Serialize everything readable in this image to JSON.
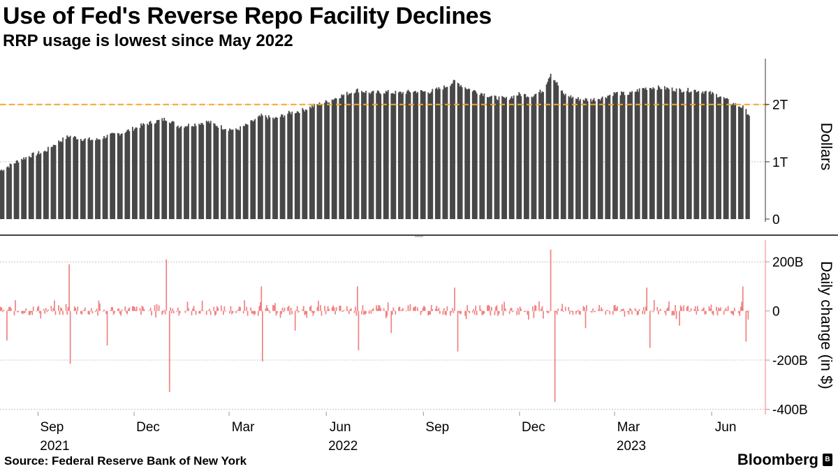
{
  "header": {
    "title": "Use of Fed's Reverse Repo Facility Declines",
    "subtitle": "RRP usage is lowest since May 2022"
  },
  "footer": {
    "source": "Source: Federal Reserve Bank of New York",
    "brand": "Bloomberg"
  },
  "colors": {
    "bars": "#474747",
    "change": "#f08080",
    "reference": "#f5a623",
    "grid": "#c4c4c4",
    "axis": "#333333"
  },
  "icons": {
    "brand": "bloomberg-logo-icon"
  },
  "x_axis": {
    "months": [
      "Sep",
      "Dec",
      "Mar",
      "Jun",
      "Sep",
      "Dec",
      "Mar",
      "Jun"
    ],
    "years": [
      "2021",
      "2022",
      "2023"
    ]
  },
  "chart_data": [
    {
      "type": "bar",
      "id": "rrp-usage",
      "title": "Use of Fed's Reverse Repo Facility Declines",
      "subtitle": "RRP usage is lowest since May 2022",
      "ylabel": "Dollars",
      "ylim": [
        0,
        2.8
      ],
      "yunit": "trillions USD",
      "yticks": [
        {
          "value": 0,
          "label": "0"
        },
        {
          "value": 1,
          "label": "1T"
        },
        {
          "value": 2,
          "label": "2T"
        }
      ],
      "reference_line": {
        "value": 2.0,
        "style": "dashed"
      },
      "x_range": [
        "2021-07-27",
        "2023-07-06"
      ],
      "series": [
        {
          "name": "RRP usage",
          "points": [
            [
              "2021-07-27",
              0.85
            ],
            [
              "2021-08-06",
              0.95
            ],
            [
              "2021-08-16",
              1.05
            ],
            [
              "2021-08-26",
              1.12
            ],
            [
              "2021-09-07",
              1.18
            ],
            [
              "2021-09-17",
              1.32
            ],
            [
              "2021-09-30",
              1.45
            ],
            [
              "2021-10-12",
              1.4
            ],
            [
              "2021-10-25",
              1.38
            ],
            [
              "2021-11-05",
              1.45
            ],
            [
              "2021-11-18",
              1.5
            ],
            [
              "2021-11-30",
              1.58
            ],
            [
              "2021-12-10",
              1.65
            ],
            [
              "2021-12-20",
              1.7
            ],
            [
              "2021-12-31",
              1.75
            ],
            [
              "2022-01-12",
              1.62
            ],
            [
              "2022-01-25",
              1.65
            ],
            [
              "2022-02-08",
              1.7
            ],
            [
              "2022-02-22",
              1.6
            ],
            [
              "2022-03-07",
              1.55
            ],
            [
              "2022-03-18",
              1.65
            ],
            [
              "2022-03-31",
              1.8
            ],
            [
              "2022-04-13",
              1.75
            ],
            [
              "2022-04-26",
              1.85
            ],
            [
              "2022-05-09",
              1.9
            ],
            [
              "2022-05-20",
              1.98
            ],
            [
              "2022-06-01",
              2.05
            ],
            [
              "2022-06-14",
              2.15
            ],
            [
              "2022-06-30",
              2.25
            ],
            [
              "2022-07-13",
              2.2
            ],
            [
              "2022-07-26",
              2.22
            ],
            [
              "2022-08-08",
              2.2
            ],
            [
              "2022-08-22",
              2.23
            ],
            [
              "2022-09-06",
              2.22
            ],
            [
              "2022-09-20",
              2.3
            ],
            [
              "2022-09-30",
              2.4
            ],
            [
              "2022-10-12",
              2.28
            ],
            [
              "2022-10-25",
              2.2
            ],
            [
              "2022-11-07",
              2.12
            ],
            [
              "2022-11-18",
              2.1
            ],
            [
              "2022-11-30",
              2.18
            ],
            [
              "2022-12-12",
              2.15
            ],
            [
              "2022-12-23",
              2.25
            ],
            [
              "2022-12-30",
              2.55
            ],
            [
              "2023-01-11",
              2.18
            ],
            [
              "2023-01-24",
              2.1
            ],
            [
              "2023-02-06",
              2.08
            ],
            [
              "2023-02-17",
              2.12
            ],
            [
              "2023-03-01",
              2.2
            ],
            [
              "2023-03-14",
              2.18
            ],
            [
              "2023-03-27",
              2.28
            ],
            [
              "2023-04-07",
              2.3
            ],
            [
              "2023-04-19",
              2.28
            ],
            [
              "2023-05-02",
              2.25
            ],
            [
              "2023-05-15",
              2.25
            ],
            [
              "2023-05-26",
              2.22
            ],
            [
              "2023-06-08",
              2.15
            ],
            [
              "2023-06-20",
              2.02
            ],
            [
              "2023-06-30",
              1.95
            ],
            [
              "2023-07-06",
              1.82
            ]
          ]
        }
      ]
    },
    {
      "type": "bar",
      "id": "daily-change",
      "ylabel": "Daily change (in $)",
      "ylim": [
        -410,
        300
      ],
      "yunit": "billions USD",
      "yticks": [
        {
          "value": 200,
          "label": "200B"
        },
        {
          "value": 0,
          "label": "0"
        },
        {
          "value": -200,
          "label": "-200B"
        },
        {
          "value": -400,
          "label": "-400B"
        }
      ],
      "x_range": [
        "2021-07-27",
        "2023-07-06"
      ],
      "series": [
        {
          "name": "Daily change",
          "spikes": [
            [
              "2021-09-30",
              190
            ],
            [
              "2021-10-01",
              -215
            ],
            [
              "2021-08-02",
              -120
            ],
            [
              "2021-11-05",
              -140
            ],
            [
              "2021-12-31",
              210
            ],
            [
              "2022-01-03",
              -330
            ],
            [
              "2022-03-31",
              100
            ],
            [
              "2022-04-01",
              -205
            ],
            [
              "2022-06-30",
              100
            ],
            [
              "2022-07-01",
              -160
            ],
            [
              "2022-09-30",
              95
            ],
            [
              "2022-10-03",
              -165
            ],
            [
              "2022-12-30",
              250
            ],
            [
              "2023-01-03",
              -370
            ],
            [
              "2023-03-31",
              95
            ],
            [
              "2023-04-03",
              -150
            ],
            [
              "2023-06-30",
              100
            ],
            [
              "2023-07-03",
              -125
            ],
            [
              "2023-07-05",
              -35
            ],
            [
              "2022-05-02",
              -80
            ],
            [
              "2022-08-01",
              -90
            ],
            [
              "2023-02-01",
              -70
            ],
            [
              "2023-05-01",
              -60
            ]
          ],
          "typical_abs_range": [
            0,
            45
          ]
        }
      ]
    }
  ]
}
